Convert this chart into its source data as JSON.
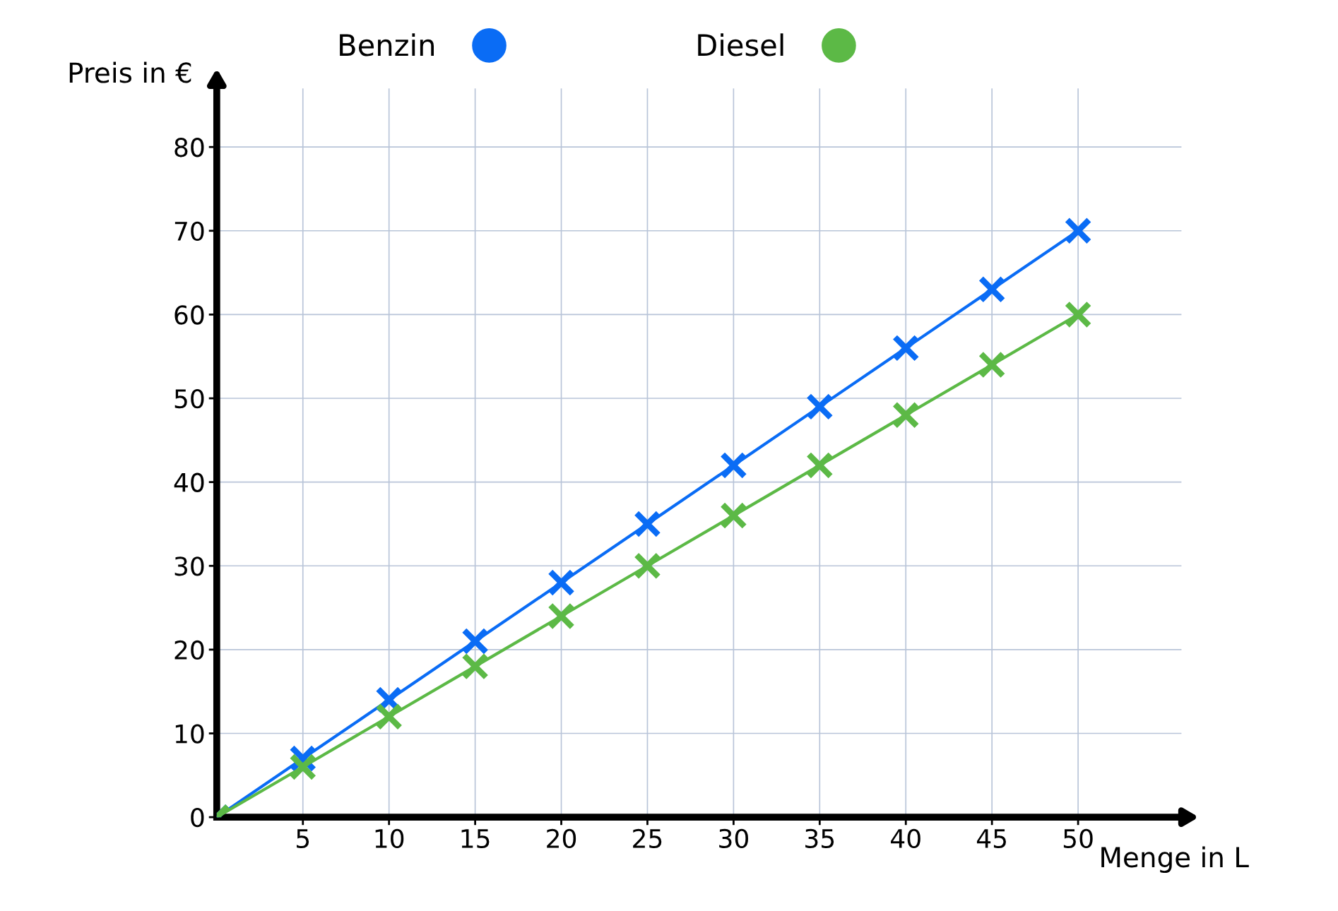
{
  "chart_data": {
    "type": "line",
    "xlabel": "Menge in L",
    "ylabel": "Preis in €",
    "x": [
      0,
      5,
      10,
      15,
      20,
      25,
      30,
      35,
      40,
      45,
      50
    ],
    "series": [
      {
        "name": "Benzin",
        "color": "#0a6cf5",
        "values": [
          0,
          7,
          14,
          21,
          28,
          35,
          42,
          49,
          56,
          63,
          70
        ]
      },
      {
        "name": "Diesel",
        "color": "#5cb946",
        "values": [
          0,
          6,
          12,
          18,
          24,
          30,
          36,
          42,
          48,
          54,
          60
        ]
      }
    ],
    "xlim": [
      0,
      56
    ],
    "ylim": [
      0,
      87
    ],
    "xticks": [
      5,
      10,
      15,
      20,
      25,
      30,
      35,
      40,
      45,
      50
    ],
    "yticks": [
      0,
      10,
      20,
      30,
      40,
      50,
      60,
      70,
      80
    ],
    "grid": true,
    "legend": "top",
    "marker": "cross",
    "line_style": "solid"
  }
}
